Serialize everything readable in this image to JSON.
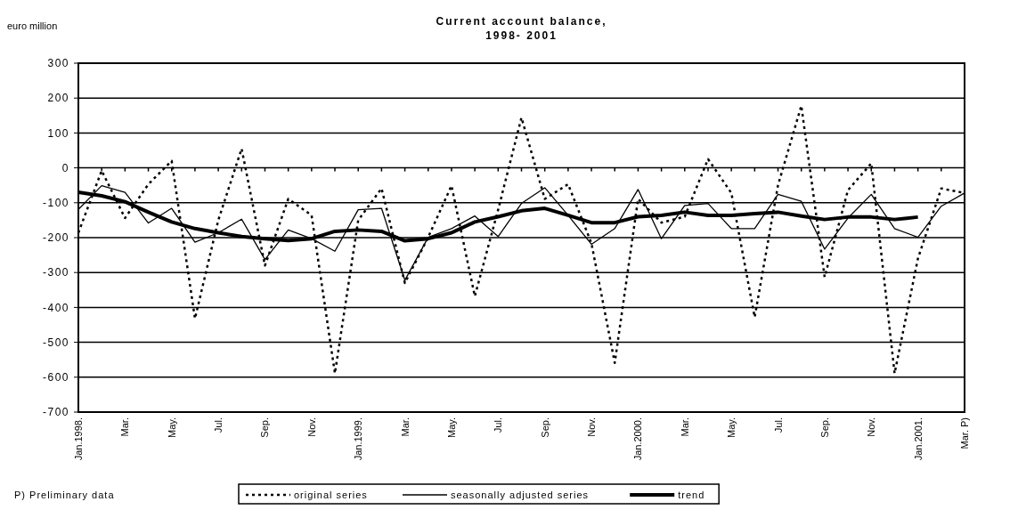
{
  "chart_data": {
    "type": "line",
    "title": "Current account balance, 1998- 2001",
    "ylabel": "euro million",
    "categories": [
      "Jan.1998.",
      null,
      "Mar.",
      null,
      "May.",
      null,
      "Jul.",
      null,
      "Sep.",
      null,
      "Nov.",
      null,
      "Jan.1999.",
      null,
      "Mar.",
      null,
      "May.",
      null,
      "Jul.",
      null,
      "Sep.",
      null,
      "Nov.",
      null,
      "Jan.2000.",
      null,
      "Mar.",
      null,
      "May.",
      null,
      "Jul.",
      null,
      "Sep.",
      null,
      "Nov.",
      null,
      "Jan.2001.",
      null,
      "Mar. P)"
    ],
    "series": [
      {
        "name": "original series",
        "color": "#000000",
        "line_style": "dotted",
        "values": [
          -186,
          -8,
          -144,
          -47,
          20,
          -432,
          -150,
          55,
          -280,
          -89,
          -136,
          -589,
          -150,
          -59,
          -330,
          -199,
          -51,
          -368,
          -120,
          144,
          -89,
          -47,
          -216,
          -559,
          -89,
          -157,
          -140,
          25,
          -72,
          -428,
          -50,
          178,
          -313,
          -64,
          13,
          -589,
          -260,
          -59,
          -72
        ]
      },
      {
        "name": "seasonally adjusted series",
        "color": "#000000",
        "line_style": "solid",
        "values": [
          -119,
          -51,
          -70,
          -158,
          -116,
          -213,
          -186,
          -147,
          -263,
          -178,
          -203,
          -239,
          -120,
          -116,
          -322,
          -199,
          -174,
          -138,
          -197,
          -102,
          -57,
          -136,
          -219,
          -174,
          -62,
          -203,
          -108,
          -102,
          -174,
          -174,
          -76,
          -96,
          -233,
          -144,
          -76,
          -174,
          -199,
          -110,
          -72
        ]
      },
      {
        "name": "trend",
        "color": "#000000",
        "line_style": "solid",
        "values": [
          -70,
          -80,
          -97,
          -127,
          -155,
          -174,
          -186,
          -197,
          -203,
          -208,
          -203,
          -182,
          -178,
          -182,
          -209,
          -203,
          -186,
          -155,
          -140,
          -123,
          -116,
          -136,
          -157,
          -157,
          -140,
          -136,
          -127,
          -136,
          -136,
          -131,
          -127,
          -138,
          -148,
          -141,
          -141,
          -148,
          -141,
          null,
          null
        ]
      }
    ],
    "ylim": [
      -700,
      300
    ],
    "yticks": [
      -700,
      -600,
      -500,
      -400,
      -300,
      -200,
      -100,
      0,
      100,
      200,
      300
    ],
    "grid": "y",
    "legend": "bottom",
    "marker": "none",
    "annotations": [
      "P) Preliminary data"
    ]
  }
}
